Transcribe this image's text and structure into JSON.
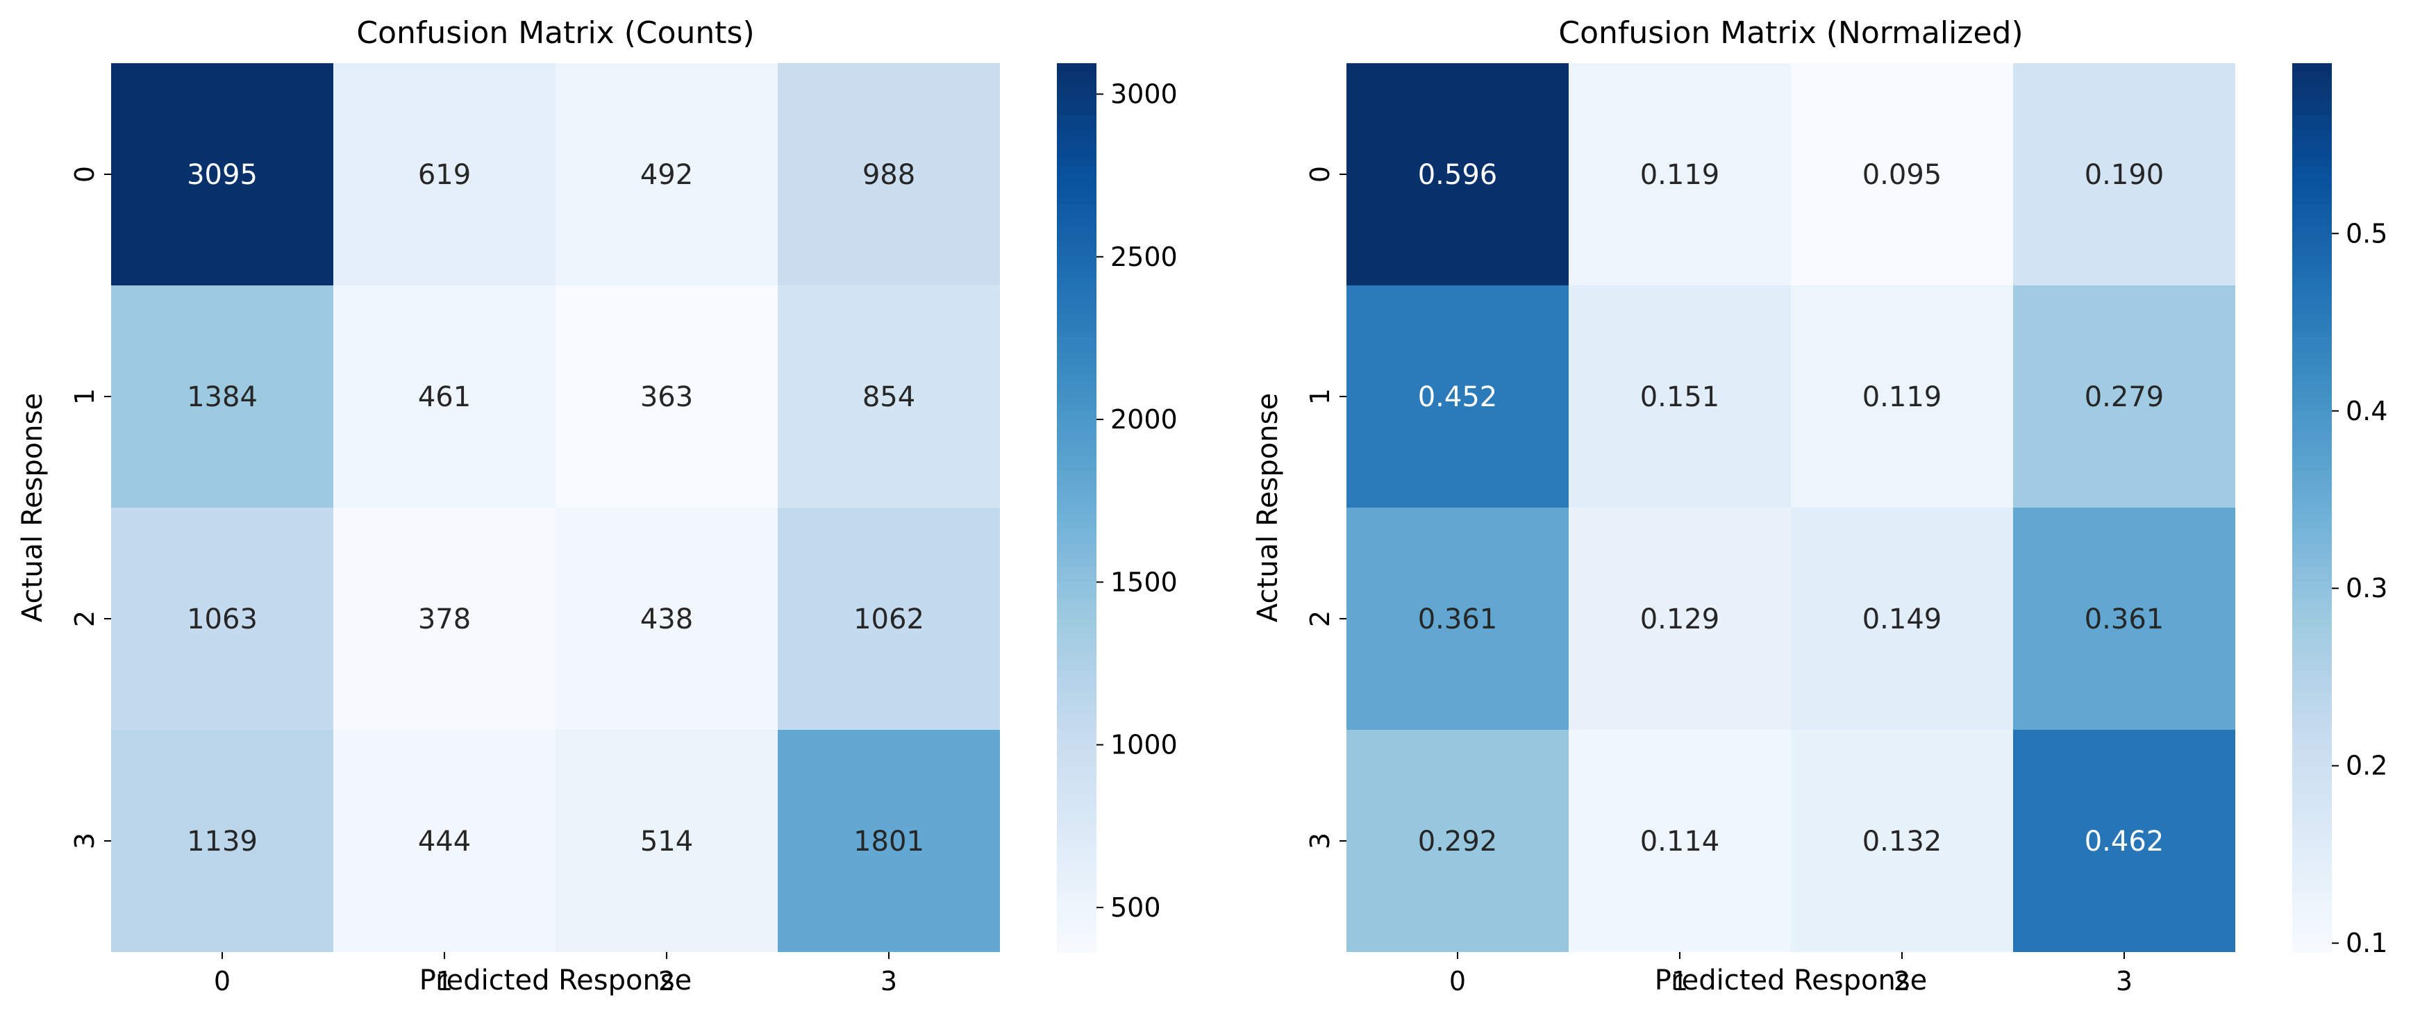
{
  "chart_data": [
    {
      "type": "heatmap",
      "title": "Confusion Matrix (Counts)",
      "xlabel": "Predicted Response",
      "ylabel": "Actual Response",
      "x_categories": [
        "0",
        "1",
        "2",
        "3"
      ],
      "y_categories": [
        "0",
        "1",
        "2",
        "3"
      ],
      "values": [
        [
          3095,
          619,
          492,
          988
        ],
        [
          1384,
          461,
          363,
          854
        ],
        [
          1063,
          378,
          438,
          1062
        ],
        [
          1139,
          444,
          514,
          1801
        ]
      ],
      "cell_labels": [
        [
          "3095",
          "619",
          "492",
          "988"
        ],
        [
          "1384",
          "461",
          "363",
          "854"
        ],
        [
          "1063",
          "378",
          "438",
          "1062"
        ],
        [
          "1139",
          "444",
          "514",
          "1801"
        ]
      ],
      "colormap": "Blues",
      "color_range": [
        363,
        3095
      ],
      "colorbar_ticks": [
        500,
        1000,
        1500,
        2000,
        2500,
        3000
      ],
      "colorbar_tick_labels": [
        "500",
        "1000",
        "1500",
        "2000",
        "2500",
        "3000"
      ]
    },
    {
      "type": "heatmap",
      "title": "Confusion Matrix (Normalized)",
      "xlabel": "Predicted Response",
      "ylabel": "Actual Response",
      "x_categories": [
        "0",
        "1",
        "2",
        "3"
      ],
      "y_categories": [
        "0",
        "1",
        "2",
        "3"
      ],
      "values": [
        [
          0.596,
          0.119,
          0.095,
          0.19
        ],
        [
          0.452,
          0.151,
          0.119,
          0.279
        ],
        [
          0.361,
          0.129,
          0.149,
          0.361
        ],
        [
          0.292,
          0.114,
          0.132,
          0.462
        ]
      ],
      "cell_labels": [
        [
          "0.596",
          "0.119",
          "0.095",
          "0.190"
        ],
        [
          "0.452",
          "0.151",
          "0.119",
          "0.279"
        ],
        [
          "0.361",
          "0.129",
          "0.149",
          "0.361"
        ],
        [
          "0.292",
          "0.114",
          "0.132",
          "0.462"
        ]
      ],
      "colormap": "Blues",
      "color_range": [
        0.095,
        0.596
      ],
      "colorbar_ticks": [
        0.1,
        0.2,
        0.3,
        0.4,
        0.5
      ],
      "colorbar_tick_labels": [
        "0.1",
        "0.2",
        "0.3",
        "0.4",
        "0.5"
      ]
    }
  ]
}
